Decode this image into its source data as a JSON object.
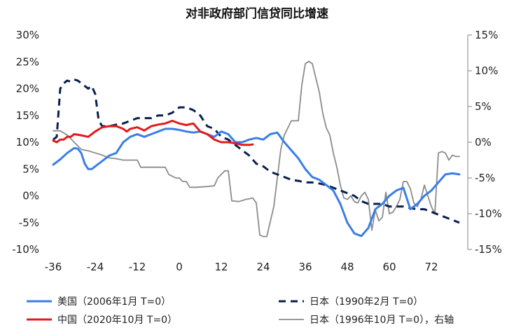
{
  "chart_data": {
    "type": "line",
    "title": "对非政府部门信贷同比增速",
    "xlabel": "",
    "ylabel": "",
    "xlim": [
      -38,
      80
    ],
    "x_ticks": [
      -36,
      -24,
      -12,
      0,
      12,
      24,
      36,
      48,
      60,
      72
    ],
    "y_left": {
      "lim": [
        -10,
        30
      ],
      "ticks": [
        -10,
        -5,
        0,
        5,
        10,
        15,
        20,
        25,
        30
      ],
      "tick_labels": [
        "-10%",
        "-5%",
        "0%",
        "5%",
        "10%",
        "15%",
        "20%",
        "25%",
        "30%"
      ]
    },
    "y_right": {
      "lim": [
        -15,
        15
      ],
      "ticks": [
        -15,
        -10,
        -5,
        0,
        5,
        10,
        15
      ],
      "tick_labels": [
        "-15%",
        "-10%",
        "-5%",
        "0%",
        "5%",
        "10%",
        "15%"
      ]
    },
    "legend_position": "bottom",
    "series": [
      {
        "name": "美国（2006年1月 T=0）",
        "axis": "left",
        "color": "#3a7ee6",
        "dash": "solid",
        "width": 3,
        "points": [
          [
            -36,
            5.8
          ],
          [
            -34,
            6.8
          ],
          [
            -32,
            8
          ],
          [
            -30,
            8.9
          ],
          [
            -29,
            8.8
          ],
          [
            -28,
            8
          ],
          [
            -27,
            6
          ],
          [
            -26,
            5
          ],
          [
            -25,
            5
          ],
          [
            -24,
            5.5
          ],
          [
            -22,
            6.5
          ],
          [
            -20,
            7.5
          ],
          [
            -18,
            8
          ],
          [
            -16,
            10
          ],
          [
            -14,
            11
          ],
          [
            -12,
            11.5
          ],
          [
            -10,
            11
          ],
          [
            -8,
            11.5
          ],
          [
            -6,
            12
          ],
          [
            -4,
            12.5
          ],
          [
            -2,
            12.5
          ],
          [
            0,
            12.3
          ],
          [
            2,
            12
          ],
          [
            4,
            11.8
          ],
          [
            6,
            12
          ],
          [
            8,
            11.5
          ],
          [
            10,
            11
          ],
          [
            12,
            12
          ],
          [
            14,
            11.5
          ],
          [
            16,
            10
          ],
          [
            18,
            10
          ],
          [
            20,
            10.5
          ],
          [
            22,
            10.8
          ],
          [
            24,
            10.5
          ],
          [
            26,
            11.5
          ],
          [
            28,
            11.8
          ],
          [
            30,
            10
          ],
          [
            32,
            8.5
          ],
          [
            34,
            7
          ],
          [
            36,
            5
          ],
          [
            38,
            3.5
          ],
          [
            40,
            3
          ],
          [
            42,
            2
          ],
          [
            44,
            1
          ],
          [
            46,
            -1.5
          ],
          [
            48,
            -5
          ],
          [
            49,
            -6
          ],
          [
            50,
            -7
          ],
          [
            52,
            -7.5
          ],
          [
            54,
            -6
          ],
          [
            56,
            -2.5
          ],
          [
            58,
            -1.5
          ],
          [
            60,
            0
          ],
          [
            62,
            1
          ],
          [
            64,
            1.5
          ],
          [
            66,
            -2.5
          ],
          [
            68,
            -1.5
          ],
          [
            70,
            0
          ],
          [
            72,
            1
          ],
          [
            74,
            2.5
          ],
          [
            76,
            4
          ],
          [
            78,
            4.2
          ],
          [
            80,
            4
          ]
        ]
      },
      {
        "name": "日本（1990年2月 T=0）",
        "axis": "left",
        "color": "#0b1f4b",
        "dash": "dashed",
        "width": 3,
        "points": [
          [
            -36,
            10.5
          ],
          [
            -35,
            11
          ],
          [
            -34,
            20
          ],
          [
            -33,
            21
          ],
          [
            -32,
            21.5
          ],
          [
            -31,
            21.3
          ],
          [
            -30,
            21.7
          ],
          [
            -29,
            21.5
          ],
          [
            -28,
            21
          ],
          [
            -27,
            20.5
          ],
          [
            -26,
            20
          ],
          [
            -25,
            20.5
          ],
          [
            -24,
            19
          ],
          [
            -23,
            14
          ],
          [
            -22,
            13
          ],
          [
            -20,
            13
          ],
          [
            -18,
            13.3
          ],
          [
            -16,
            13.5
          ],
          [
            -14,
            14
          ],
          [
            -12,
            14.5
          ],
          [
            -10,
            14.5
          ],
          [
            -8,
            14.5
          ],
          [
            -6,
            15
          ],
          [
            -4,
            15
          ],
          [
            -2,
            15.5
          ],
          [
            0,
            16.5
          ],
          [
            2,
            16.5
          ],
          [
            4,
            16
          ],
          [
            6,
            15
          ],
          [
            8,
            13
          ],
          [
            10,
            12.5
          ],
          [
            12,
            11
          ],
          [
            14,
            10.5
          ],
          [
            16,
            9.5
          ],
          [
            18,
            8.5
          ],
          [
            20,
            7.5
          ],
          [
            22,
            6
          ],
          [
            24,
            5.5
          ],
          [
            26,
            4.5
          ],
          [
            28,
            4
          ],
          [
            30,
            3.5
          ],
          [
            32,
            3
          ],
          [
            34,
            2.8
          ],
          [
            36,
            2.5
          ],
          [
            38,
            2.5
          ],
          [
            40,
            2.3
          ],
          [
            42,
            2
          ],
          [
            44,
            1.5
          ],
          [
            46,
            1
          ],
          [
            48,
            0.5
          ],
          [
            50,
            0
          ],
          [
            52,
            -1
          ],
          [
            54,
            -1.5
          ],
          [
            56,
            -1.5
          ],
          [
            58,
            -1.5
          ],
          [
            60,
            -2
          ],
          [
            62,
            -2
          ],
          [
            64,
            -2
          ],
          [
            66,
            -2.3
          ],
          [
            68,
            -2.5
          ],
          [
            70,
            -2.5
          ],
          [
            72,
            -3
          ],
          [
            74,
            -3.5
          ],
          [
            76,
            -4
          ],
          [
            78,
            -4.5
          ],
          [
            80,
            -5
          ]
        ]
      },
      {
        "name": "中国（2020年10月 T=0）",
        "axis": "left",
        "color": "#e31a1c",
        "dash": "solid",
        "width": 3,
        "points": [
          [
            -36,
            10.3
          ],
          [
            -35,
            10
          ],
          [
            -34,
            10.5
          ],
          [
            -33,
            10.5
          ],
          [
            -32,
            11
          ],
          [
            -31,
            11
          ],
          [
            -30,
            11.5
          ],
          [
            -28,
            11.3
          ],
          [
            -26,
            11
          ],
          [
            -25,
            11.5
          ],
          [
            -24,
            12
          ],
          [
            -22,
            12.8
          ],
          [
            -20,
            13
          ],
          [
            -18,
            13
          ],
          [
            -16,
            12.5
          ],
          [
            -15,
            12
          ],
          [
            -14,
            12.5
          ],
          [
            -12,
            12.8
          ],
          [
            -10,
            12.2
          ],
          [
            -8,
            13
          ],
          [
            -6,
            13.3
          ],
          [
            -4,
            13.5
          ],
          [
            -2,
            14
          ],
          [
            0,
            13.5
          ],
          [
            2,
            13.2
          ],
          [
            4,
            13.5
          ],
          [
            6,
            12
          ],
          [
            8,
            11.5
          ],
          [
            10,
            10.5
          ],
          [
            12,
            10
          ],
          [
            14,
            10
          ],
          [
            16,
            9.8
          ],
          [
            18,
            9.5
          ],
          [
            20,
            9.5
          ],
          [
            21,
            9.6
          ]
        ]
      },
      {
        "name": "日本（1996年10月 T=0），右轴",
        "axis": "right",
        "color": "#8c8c8c",
        "dash": "solid",
        "width": 1.8,
        "points": [
          [
            -36,
            1.6
          ],
          [
            -34,
            1.6
          ],
          [
            -32,
            1
          ],
          [
            -30,
            0
          ],
          [
            -28,
            -1
          ],
          [
            -26,
            -1.2
          ],
          [
            -24,
            -1.5
          ],
          [
            -22,
            -1.8
          ],
          [
            -20,
            -2.2
          ],
          [
            -18,
            -2.3
          ],
          [
            -16,
            -2.5
          ],
          [
            -14,
            -2.5
          ],
          [
            -12,
            -2.5
          ],
          [
            -11,
            -3.5
          ],
          [
            -8,
            -3.5
          ],
          [
            -6,
            -3.5
          ],
          [
            -4,
            -3.5
          ],
          [
            -3,
            -4.5
          ],
          [
            -1,
            -5
          ],
          [
            0,
            -5
          ],
          [
            1,
            -5.5
          ],
          [
            2,
            -5.5
          ],
          [
            3,
            -6.3
          ],
          [
            5,
            -6.3
          ],
          [
            8,
            -6.2
          ],
          [
            10,
            -6.1
          ],
          [
            11,
            -5
          ],
          [
            13,
            -4
          ],
          [
            14,
            -4
          ],
          [
            15,
            -8.2
          ],
          [
            17,
            -8.3
          ],
          [
            19,
            -8
          ],
          [
            21,
            -7.8
          ],
          [
            22,
            -8.5
          ],
          [
            23,
            -13
          ],
          [
            24,
            -13.2
          ],
          [
            25,
            -13.2
          ],
          [
            27,
            -9
          ],
          [
            28,
            -5
          ],
          [
            29,
            -1
          ],
          [
            30,
            1
          ],
          [
            31,
            2
          ],
          [
            32,
            3
          ],
          [
            34,
            3
          ],
          [
            35,
            8
          ],
          [
            36,
            11
          ],
          [
            37,
            11.3
          ],
          [
            38,
            11
          ],
          [
            39,
            9
          ],
          [
            40,
            7
          ],
          [
            41,
            4
          ],
          [
            42,
            2
          ],
          [
            43,
            1
          ],
          [
            44,
            -1.5
          ],
          [
            45,
            -3.5
          ],
          [
            46,
            -6
          ],
          [
            47,
            -7.8
          ],
          [
            48,
            -8
          ],
          [
            49,
            -7.5
          ],
          [
            50,
            -8.3
          ],
          [
            51,
            -8.5
          ],
          [
            52,
            -7.5
          ],
          [
            53,
            -7
          ],
          [
            54,
            -8
          ],
          [
            55,
            -12.3
          ],
          [
            56,
            -9.5
          ],
          [
            57,
            -11
          ],
          [
            58,
            -10.5
          ],
          [
            59,
            -7
          ],
          [
            60,
            -10
          ],
          [
            61,
            -9.8
          ],
          [
            62,
            -9
          ],
          [
            63,
            -8
          ],
          [
            64,
            -5.5
          ],
          [
            65,
            -5.5
          ],
          [
            66,
            -6.5
          ],
          [
            67,
            -8.5
          ],
          [
            68,
            -9
          ],
          [
            69,
            -8
          ],
          [
            70,
            -6
          ],
          [
            71,
            -7.5
          ],
          [
            72,
            -9
          ],
          [
            73,
            -10
          ],
          [
            74,
            -1.5
          ],
          [
            75,
            -1.3
          ],
          [
            76,
            -1.5
          ],
          [
            77,
            -2.5
          ],
          [
            78,
            -1.8
          ],
          [
            79,
            -2
          ],
          [
            80,
            -2
          ]
        ]
      }
    ]
  }
}
